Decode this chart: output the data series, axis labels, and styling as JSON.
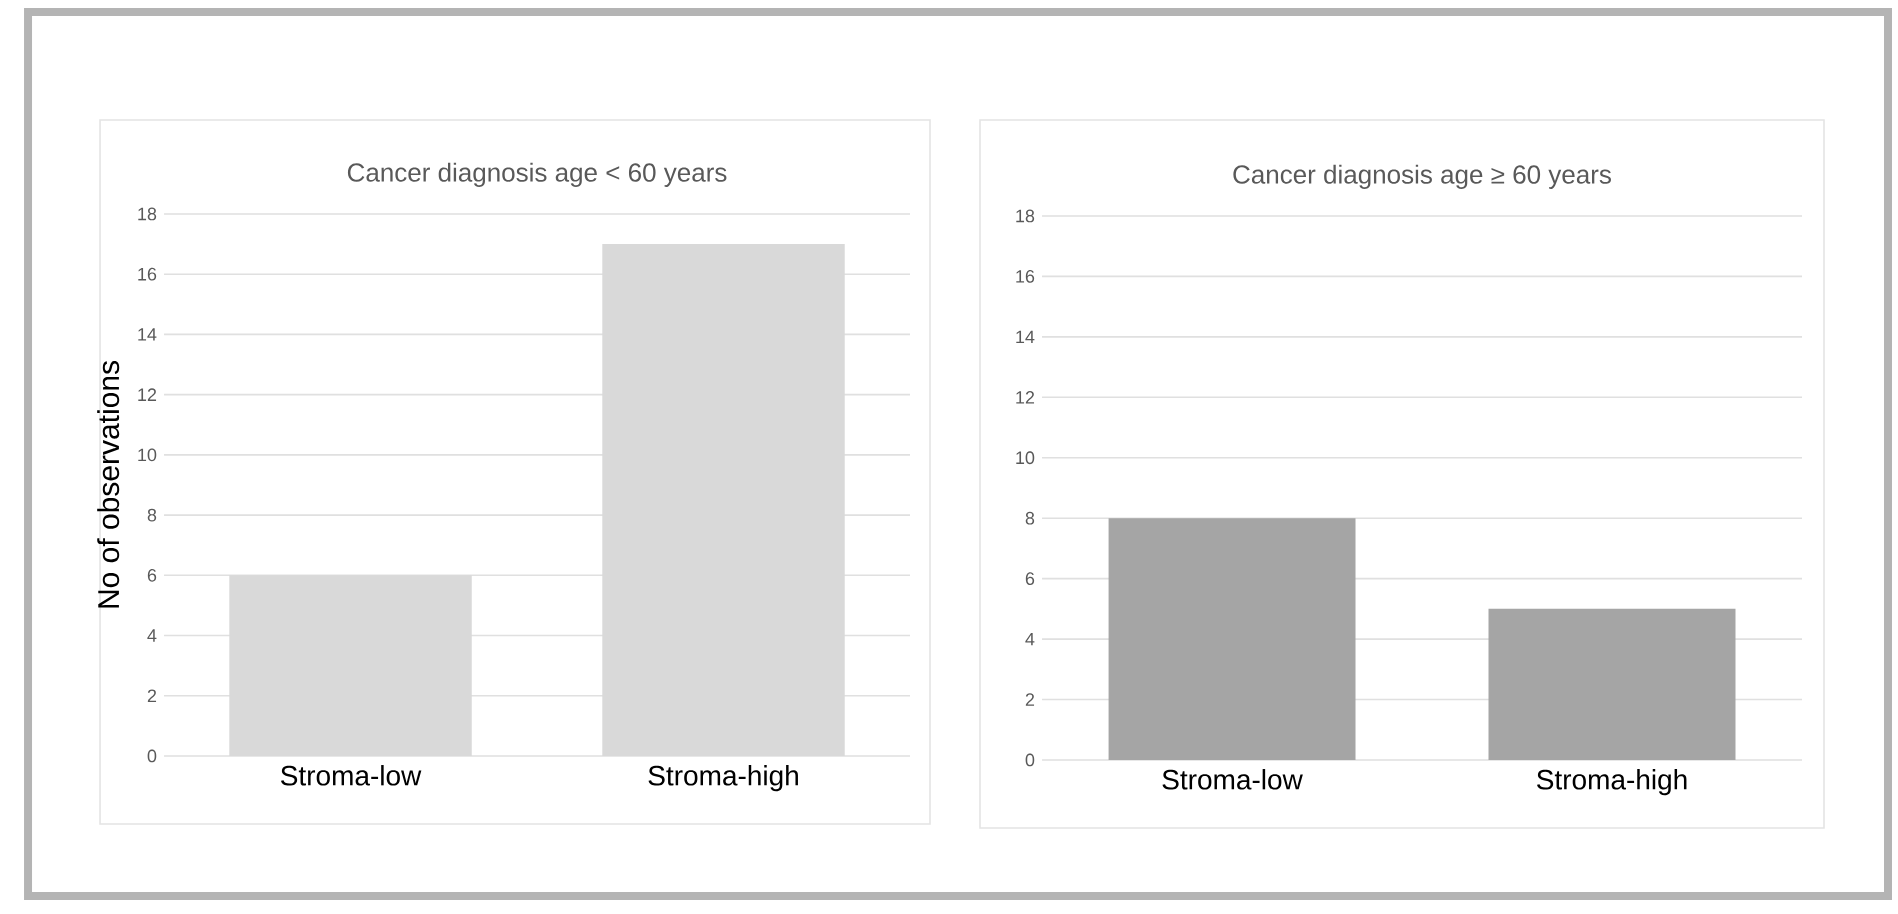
{
  "chart_data": [
    {
      "type": "bar",
      "title": "Cancer diagnosis age < 60 years",
      "ylabel": "No of observations",
      "categories": [
        "Stroma-low",
        "Stroma-high"
      ],
      "values": [
        6,
        17
      ],
      "color": "#d9d9d9",
      "ylim": [
        0,
        18
      ],
      "yticks": [
        0,
        2,
        4,
        6,
        8,
        10,
        12,
        14,
        16,
        18
      ],
      "grid": "y"
    },
    {
      "type": "bar",
      "title": "Cancer diagnosis age ≥ 60 years",
      "categories": [
        "Stroma-low",
        "Stroma-high"
      ],
      "values": [
        8,
        5
      ],
      "color": "#a5a5a5",
      "ylim": [
        0,
        18
      ],
      "yticks": [
        0,
        2,
        4,
        6,
        8,
        10,
        12,
        14,
        16,
        18
      ],
      "grid": "y"
    }
  ]
}
